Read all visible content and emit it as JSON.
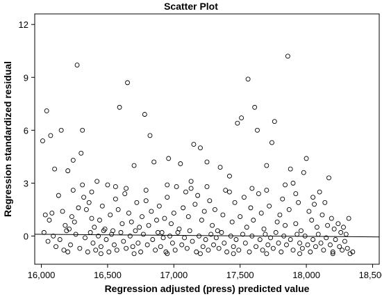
{
  "chart_data": {
    "type": "scatter",
    "title": "Scatter Plot",
    "xlabel": "Regression adjusted (press) predicted value",
    "ylabel": "Regression standardized residual",
    "xlim": [
      15950,
      18550
    ],
    "ylim": [
      -1.6,
      12.6
    ],
    "x_ticks": [
      16000,
      16500,
      17000,
      17500,
      18000,
      18500
    ],
    "x_tick_labels": [
      "16,000",
      "16,500",
      "17,000",
      "17,500",
      "18,000",
      "18,500"
    ],
    "y_ticks": [
      0,
      3,
      6,
      9,
      12
    ],
    "y_tick_labels": [
      "0",
      "3",
      "6",
      "9",
      "12"
    ],
    "grid": false,
    "marker": "open-circle",
    "fit_line": {
      "x": [
        15950,
        18550
      ],
      "y": [
        0.1,
        -0.05
      ]
    },
    "points": [
      [
        16010,
        5.4
      ],
      [
        16040,
        7.1
      ],
      [
        16070,
        5.7
      ],
      [
        16100,
        3.8
      ],
      [
        16150,
        6.0
      ],
      [
        16240,
        4.3
      ],
      [
        16270,
        9.7
      ],
      [
        16310,
        6.0
      ],
      [
        16300,
        4.7
      ],
      [
        16420,
        3.1
      ],
      [
        16590,
        7.3
      ],
      [
        16650,
        8.7
      ],
      [
        16780,
        6.9
      ],
      [
        16820,
        5.7
      ],
      [
        16960,
        4.4
      ],
      [
        17150,
        5.2
      ],
      [
        17200,
        5.0
      ],
      [
        17250,
        4.2
      ],
      [
        17560,
        8.9
      ],
      [
        17480,
        6.4
      ],
      [
        17510,
        6.7
      ],
      [
        17610,
        7.3
      ],
      [
        17630,
        6.0
      ],
      [
        17760,
        6.5
      ],
      [
        17740,
        5.3
      ],
      [
        17860,
        10.2
      ],
      [
        18000,
        4.4
      ],
      [
        17880,
        3.8
      ],
      [
        17980,
        3.6
      ],
      [
        18170,
        3.3
      ],
      [
        16200,
        3.7
      ],
      [
        16500,
        2.9
      ],
      [
        16700,
        4.0
      ],
      [
        16850,
        4.2
      ],
      [
        17050,
        4.1
      ],
      [
        17350,
        3.9
      ],
      [
        17420,
        3.4
      ],
      [
        17700,
        4.0
      ],
      [
        17900,
        3.0
      ],
      [
        18100,
        2.5
      ],
      [
        16030,
        1.2
      ],
      [
        16060,
        0.9
      ],
      [
        16080,
        1.3
      ],
      [
        16130,
        2.3
      ],
      [
        16160,
        1.4
      ],
      [
        16180,
        0.6
      ],
      [
        16210,
        0.4
      ],
      [
        16230,
        1.1
      ],
      [
        16250,
        0.8
      ],
      [
        16280,
        1.6
      ],
      [
        16320,
        2.2
      ],
      [
        16340,
        1.5
      ],
      [
        16360,
        1.9
      ],
      [
        16380,
        1.0
      ],
      [
        16400,
        0.5
      ],
      [
        16440,
        0.9
      ],
      [
        16460,
        1.7
      ],
      [
        16480,
        0.4
      ],
      [
        16520,
        1.2
      ],
      [
        16540,
        0.3
      ],
      [
        16560,
        2.1
      ],
      [
        16580,
        1.5
      ],
      [
        16610,
        0.7
      ],
      [
        16630,
        2.4
      ],
      [
        16660,
        1.3
      ],
      [
        16680,
        0.8
      ],
      [
        16720,
        1.9
      ],
      [
        16740,
        0.5
      ],
      [
        16760,
        1.1
      ],
      [
        16790,
        2.0
      ],
      [
        16810,
        0.6
      ],
      [
        16830,
        1.4
      ],
      [
        16870,
        0.9
      ],
      [
        16890,
        1.7
      ],
      [
        16910,
        0.2
      ],
      [
        16930,
        1.0
      ],
      [
        16950,
        2.2
      ],
      [
        16980,
        0.7
      ],
      [
        17000,
        1.3
      ],
      [
        17020,
        2.8
      ],
      [
        17040,
        0.4
      ],
      [
        17070,
        1.6
      ],
      [
        17090,
        2.5
      ],
      [
        17110,
        1.1
      ],
      [
        17130,
        3.1
      ],
      [
        17160,
        1.8
      ],
      [
        17180,
        2.3
      ],
      [
        17210,
        0.9
      ],
      [
        17230,
        1.4
      ],
      [
        17270,
        2.0
      ],
      [
        17290,
        0.6
      ],
      [
        17310,
        1.5
      ],
      [
        17330,
        0.3
      ],
      [
        17370,
        1.2
      ],
      [
        17390,
        2.6
      ],
      [
        17440,
        0.8
      ],
      [
        17460,
        1.9
      ],
      [
        17500,
        1.1
      ],
      [
        17530,
        2.2
      ],
      [
        17550,
        0.5
      ],
      [
        17580,
        1.6
      ],
      [
        17600,
        0.9
      ],
      [
        17640,
        2.4
      ],
      [
        17660,
        1.3
      ],
      [
        17680,
        0.4
      ],
      [
        17720,
        1.7
      ],
      [
        17780,
        0.8
      ],
      [
        17800,
        1.2
      ],
      [
        17820,
        2.1
      ],
      [
        17840,
        0.6
      ],
      [
        17870,
        1.5
      ],
      [
        17920,
        0.7
      ],
      [
        17940,
        1.9
      ],
      [
        17960,
        0.3
      ],
      [
        18020,
        1.4
      ],
      [
        18040,
        0.9
      ],
      [
        18060,
        1.8
      ],
      [
        18080,
        0.5
      ],
      [
        18120,
        1.2
      ],
      [
        18140,
        1.9
      ],
      [
        18160,
        0.6
      ],
      [
        18190,
        1.0
      ],
      [
        18210,
        0.4
      ],
      [
        18240,
        0.7
      ],
      [
        18260,
        0.2
      ],
      [
        18280,
        0.5
      ],
      [
        18300,
        0.1
      ],
      [
        16020,
        0.2
      ],
      [
        16050,
        -0.3
      ],
      [
        16090,
        0.0
      ],
      [
        16110,
        -0.6
      ],
      [
        16140,
        -0.2
      ],
      [
        16170,
        -0.8
      ],
      [
        16190,
        0.3
      ],
      [
        16220,
        -0.5
      ],
      [
        16260,
        0.1
      ],
      [
        16290,
        -0.7
      ],
      [
        16330,
        -0.1
      ],
      [
        16350,
        -0.9
      ],
      [
        16370,
        0.2
      ],
      [
        16390,
        -0.4
      ],
      [
        16410,
        -0.8
      ],
      [
        16430,
        0.0
      ],
      [
        16450,
        -0.6
      ],
      [
        16470,
        0.3
      ],
      [
        16490,
        -0.2
      ],
      [
        16510,
        -0.9
      ],
      [
        16530,
        0.1
      ],
      [
        16550,
        -0.5
      ],
      [
        16570,
        -0.8
      ],
      [
        16600,
        0.2
      ],
      [
        16620,
        -0.3
      ],
      [
        16640,
        -0.7
      ],
      [
        16670,
        0.0
      ],
      [
        16690,
        -0.6
      ],
      [
        16710,
        0.3
      ],
      [
        16730,
        -0.4
      ],
      [
        16750,
        -0.9
      ],
      [
        16770,
        0.1
      ],
      [
        16800,
        -0.5
      ],
      [
        16840,
        -0.2
      ],
      [
        16860,
        -0.8
      ],
      [
        16880,
        0.2
      ],
      [
        16900,
        -0.6
      ],
      [
        16920,
        -0.1
      ],
      [
        16940,
        -0.9
      ],
      [
        16970,
        0.0
      ],
      [
        16990,
        -0.4
      ],
      [
        17010,
        -0.8
      ],
      [
        17030,
        0.2
      ],
      [
        17060,
        -0.5
      ],
      [
        17080,
        -0.1
      ],
      [
        17100,
        -0.7
      ],
      [
        17120,
        0.3
      ],
      [
        17140,
        -0.3
      ],
      [
        17170,
        -0.9
      ],
      [
        17190,
        0.0
      ],
      [
        17220,
        -0.6
      ],
      [
        17240,
        -0.2
      ],
      [
        17260,
        -0.8
      ],
      [
        17280,
        0.1
      ],
      [
        17300,
        -0.5
      ],
      [
        17320,
        -0.1
      ],
      [
        17340,
        -0.7
      ],
      [
        17360,
        0.2
      ],
      [
        17380,
        -0.4
      ],
      [
        17400,
        -0.9
      ],
      [
        17430,
        0.0
      ],
      [
        17450,
        -0.6
      ],
      [
        17470,
        -0.2
      ],
      [
        17490,
        -0.8
      ],
      [
        17520,
        0.1
      ],
      [
        17540,
        -0.4
      ],
      [
        17570,
        -0.9
      ],
      [
        17590,
        0.0
      ],
      [
        17620,
        -0.6
      ],
      [
        17650,
        -0.2
      ],
      [
        17670,
        -0.8
      ],
      [
        17690,
        0.1
      ],
      [
        17710,
        -0.5
      ],
      [
        17730,
        -0.1
      ],
      [
        17750,
        -0.7
      ],
      [
        17770,
        0.2
      ],
      [
        17790,
        -0.4
      ],
      [
        17810,
        -0.9
      ],
      [
        17830,
        0.0
      ],
      [
        17850,
        -0.5
      ],
      [
        17880,
        -0.2
      ],
      [
        17900,
        -0.8
      ],
      [
        17930,
        0.1
      ],
      [
        17950,
        -0.4
      ],
      [
        17970,
        -0.7
      ],
      [
        17990,
        0.0
      ],
      [
        18010,
        -0.5
      ],
      [
        18030,
        -0.9
      ],
      [
        18050,
        -0.2
      ],
      [
        18070,
        -0.6
      ],
      [
        18090,
        0.1
      ],
      [
        18110,
        -0.4
      ],
      [
        18130,
        -0.8
      ],
      [
        18150,
        -0.1
      ],
      [
        18180,
        -0.5
      ],
      [
        18200,
        -0.9
      ],
      [
        18220,
        -0.2
      ],
      [
        18250,
        -0.6
      ],
      [
        18270,
        -0.8
      ],
      [
        18290,
        -0.3
      ],
      [
        18310,
        -0.7
      ],
      [
        18330,
        -1.0
      ],
      [
        18350,
        -0.9
      ],
      [
        16240,
        2.6
      ],
      [
        16310,
        2.9
      ],
      [
        16380,
        2.5
      ],
      [
        16560,
        2.8
      ],
      [
        16640,
        2.7
      ],
      [
        16790,
        2.6
      ],
      [
        16950,
        2.9
      ],
      [
        17130,
        2.7
      ],
      [
        17250,
        2.8
      ],
      [
        17420,
        2.5
      ],
      [
        17590,
        2.7
      ],
      [
        17700,
        2.6
      ],
      [
        17840,
        2.9
      ],
      [
        17920,
        2.4
      ],
      [
        18050,
        2.2
      ],
      [
        16200,
        -0.9
      ],
      [
        16450,
        -1.0
      ],
      [
        16700,
        -1.0
      ],
      [
        16950,
        -1.0
      ],
      [
        17200,
        -1.0
      ],
      [
        17450,
        -1.0
      ],
      [
        17700,
        -1.0
      ],
      [
        17950,
        -1.0
      ],
      [
        18200,
        -1.0
      ],
      [
        18320,
        1.0
      ]
    ]
  }
}
